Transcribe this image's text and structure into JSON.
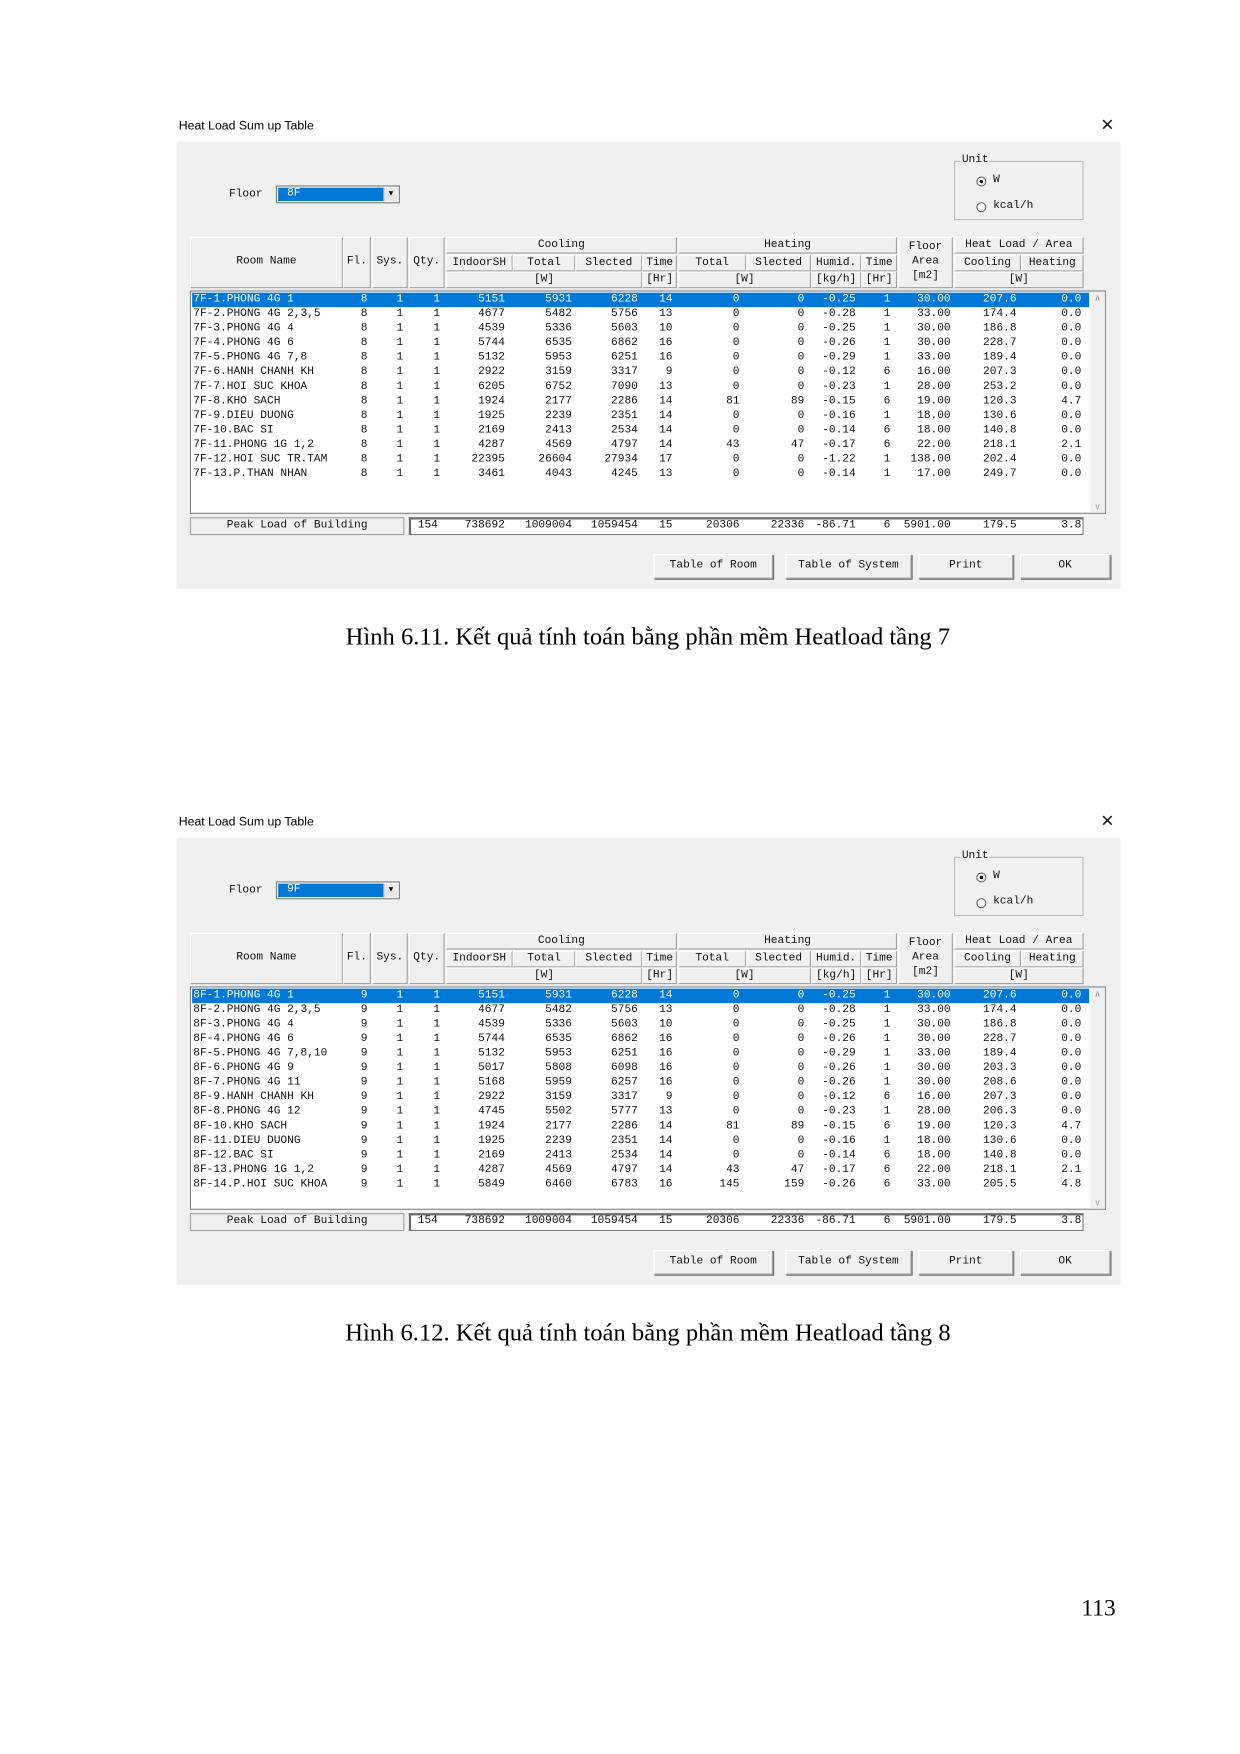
{
  "page_number": "113",
  "colors": {
    "selection": "#0078d7",
    "panel": "#f0f0f0"
  },
  "dialogs": [
    {
      "title": "Heat Load Sum up Table",
      "close_icon": "close-icon",
      "floor_label": "Floor",
      "floor_value": "8F",
      "unit": {
        "legend": "Unit",
        "options": [
          "W",
          "kcal/h"
        ],
        "selected": "W"
      },
      "headers": {
        "room_name": "Room Name",
        "fl": "Fl.",
        "sys": "Sys.",
        "qty": "Qty.",
        "cooling": "Cooling",
        "indoorsh": "IndoorSH",
        "c_total": "Total",
        "c_slected": "Slected",
        "c_time": "Time",
        "c_unit_w": "[W]",
        "c_unit_hr": "[Hr]",
        "heating": "Heating",
        "h_total": "Total",
        "h_slected": "Slected",
        "humid": "Humid.",
        "h_time": "Time",
        "h_unit_w": "[W]",
        "h_unit_kg": "[kg/h]",
        "h_unit_hr": "[Hr]",
        "floor_area": "Floor\nArea\n[m2]",
        "load_area": "Heat Load / Area",
        "la_cooling": "Cooling",
        "la_heating": "Heating",
        "la_unit": "[W]"
      },
      "selected_row": 0,
      "rows": [
        [
          "7F-1.PHONG 4G 1",
          "8",
          "1",
          "1",
          "5151",
          "5931",
          "6228",
          "14",
          "0",
          "0",
          "-0.25",
          "1",
          "30.00",
          "207.6",
          "0.0"
        ],
        [
          "7F-2.PHONG 4G 2,3,5",
          "8",
          "1",
          "1",
          "4677",
          "5482",
          "5756",
          "13",
          "0",
          "0",
          "-0.28",
          "1",
          "33.00",
          "174.4",
          "0.0"
        ],
        [
          "7F-3.PHONG 4G 4",
          "8",
          "1",
          "1",
          "4539",
          "5336",
          "5603",
          "10",
          "0",
          "0",
          "-0.25",
          "1",
          "30.00",
          "186.8",
          "0.0"
        ],
        [
          "7F-4.PHONG 4G 6",
          "8",
          "1",
          "1",
          "5744",
          "6535",
          "6862",
          "16",
          "0",
          "0",
          "-0.26",
          "1",
          "30.00",
          "228.7",
          "0.0"
        ],
        [
          "7F-5.PHONG 4G 7,8",
          "8",
          "1",
          "1",
          "5132",
          "5953",
          "6251",
          "16",
          "0",
          "0",
          "-0.29",
          "1",
          "33.00",
          "189.4",
          "0.0"
        ],
        [
          "7F-6.HANH CHANH KH",
          "8",
          "1",
          "1",
          "2922",
          "3159",
          "3317",
          "9",
          "0",
          "0",
          "-0.12",
          "6",
          "16.00",
          "207.3",
          "0.0"
        ],
        [
          "7F-7.HOI SUC KHOA",
          "8",
          "1",
          "1",
          "6205",
          "6752",
          "7090",
          "13",
          "0",
          "0",
          "-0.23",
          "1",
          "28.00",
          "253.2",
          "0.0"
        ],
        [
          "7F-8.KHO SACH",
          "8",
          "1",
          "1",
          "1924",
          "2177",
          "2286",
          "14",
          "81",
          "89",
          "-0.15",
          "6",
          "19.00",
          "120.3",
          "4.7"
        ],
        [
          "7F-9.DIEU DUONG",
          "8",
          "1",
          "1",
          "1925",
          "2239",
          "2351",
          "14",
          "0",
          "0",
          "-0.16",
          "1",
          "18.00",
          "130.6",
          "0.0"
        ],
        [
          "7F-10.BAC SI",
          "8",
          "1",
          "1",
          "2169",
          "2413",
          "2534",
          "14",
          "0",
          "0",
          "-0.14",
          "6",
          "18.00",
          "140.8",
          "0.0"
        ],
        [
          "7F-11.PHONG 1G 1,2",
          "8",
          "1",
          "1",
          "4287",
          "4569",
          "4797",
          "14",
          "43",
          "47",
          "-0.17",
          "6",
          "22.00",
          "218.1",
          "2.1"
        ],
        [
          "7F-12.HOI SUC TR.TAM",
          "8",
          "1",
          "1",
          "22395",
          "26604",
          "27934",
          "17",
          "0",
          "0",
          "-1.22",
          "1",
          "138.00",
          "202.4",
          "0.0"
        ],
        [
          "7F-13.P.THAN NHAN",
          "8",
          "1",
          "1",
          "3461",
          "4043",
          "4245",
          "13",
          "0",
          "0",
          "-0.14",
          "1",
          "17.00",
          "249.7",
          "0.0"
        ]
      ],
      "peak_label": "Peak Load of Building",
      "peak_values": [
        "154",
        "738692",
        "1009004",
        "1059454",
        "15",
        "20306",
        "22336",
        "-86.71",
        "6",
        "5901.00",
        "179.5",
        "3.8"
      ],
      "buttons": [
        "Table of Room",
        "Table of System",
        "Print",
        "OK"
      ],
      "caption": "Hình 6.11. Kết quả tính toán bằng phần mềm Heatload tầng 7"
    },
    {
      "title": "Heat Load Sum up Table",
      "close_icon": "close-icon",
      "floor_label": "Floor",
      "floor_value": "9F",
      "unit": {
        "legend": "Unit",
        "options": [
          "W",
          "kcal/h"
        ],
        "selected": "W"
      },
      "headers": {
        "room_name": "Room Name",
        "fl": "Fl.",
        "sys": "Sys.",
        "qty": "Qty.",
        "cooling": "Cooling",
        "indoorsh": "IndoorSH",
        "c_total": "Total",
        "c_slected": "Slected",
        "c_time": "Time",
        "c_unit_w": "[W]",
        "c_unit_hr": "[Hr]",
        "heating": "Heating",
        "h_total": "Total",
        "h_slected": "Slected",
        "humid": "Humid.",
        "h_time": "Time",
        "h_unit_w": "[W]",
        "h_unit_kg": "[kg/h]",
        "h_unit_hr": "[Hr]",
        "floor_area": "Floor\nArea\n[m2]",
        "load_area": "Heat Load / Area",
        "la_cooling": "Cooling",
        "la_heating": "Heating",
        "la_unit": "[W]"
      },
      "selected_row": 0,
      "rows": [
        [
          "8F-1.PHONG 4G 1",
          "9",
          "1",
          "1",
          "5151",
          "5931",
          "6228",
          "14",
          "0",
          "0",
          "-0.25",
          "1",
          "30.00",
          "207.6",
          "0.0"
        ],
        [
          "8F-2.PHONG 4G 2,3,5",
          "9",
          "1",
          "1",
          "4677",
          "5482",
          "5756",
          "13",
          "0",
          "0",
          "-0.28",
          "1",
          "33.00",
          "174.4",
          "0.0"
        ],
        [
          "8F-3.PHONG 4G 4",
          "9",
          "1",
          "1",
          "4539",
          "5336",
          "5603",
          "10",
          "0",
          "0",
          "-0.25",
          "1",
          "30.00",
          "186.8",
          "0.0"
        ],
        [
          "8F-4.PHONG 4G 6",
          "9",
          "1",
          "1",
          "5744",
          "6535",
          "6862",
          "16",
          "0",
          "0",
          "-0.26",
          "1",
          "30.00",
          "228.7",
          "0.0"
        ],
        [
          "8F-5.PHONG 4G 7,8,10",
          "9",
          "1",
          "1",
          "5132",
          "5953",
          "6251",
          "16",
          "0",
          "0",
          "-0.29",
          "1",
          "33.00",
          "189.4",
          "0.0"
        ],
        [
          "8F-6.PHONG 4G 9",
          "9",
          "1",
          "1",
          "5017",
          "5808",
          "6098",
          "16",
          "0",
          "0",
          "-0.26",
          "1",
          "30.00",
          "203.3",
          "0.0"
        ],
        [
          "8F-7.PHONG 4G 11",
          "9",
          "1",
          "1",
          "5168",
          "5959",
          "6257",
          "16",
          "0",
          "0",
          "-0.26",
          "1",
          "30.00",
          "208.6",
          "0.0"
        ],
        [
          "8F-9.HANH CHANH KH",
          "9",
          "1",
          "1",
          "2922",
          "3159",
          "3317",
          "9",
          "0",
          "0",
          "-0.12",
          "6",
          "16.00",
          "207.3",
          "0.0"
        ],
        [
          "8F-8.PHONG 4G 12",
          "9",
          "1",
          "1",
          "4745",
          "5502",
          "5777",
          "13",
          "0",
          "0",
          "-0.23",
          "1",
          "28.00",
          "206.3",
          "0.0"
        ],
        [
          "8F-10.KHO SACH",
          "9",
          "1",
          "1",
          "1924",
          "2177",
          "2286",
          "14",
          "81",
          "89",
          "-0.15",
          "6",
          "19.00",
          "120.3",
          "4.7"
        ],
        [
          "8F-11.DIEU DUONG",
          "9",
          "1",
          "1",
          "1925",
          "2239",
          "2351",
          "14",
          "0",
          "0",
          "-0.16",
          "1",
          "18.00",
          "130.6",
          "0.0"
        ],
        [
          "8F-12.BAC SI",
          "9",
          "1",
          "1",
          "2169",
          "2413",
          "2534",
          "14",
          "0",
          "0",
          "-0.14",
          "6",
          "18.00",
          "140.8",
          "0.0"
        ],
        [
          "8F-13.PHONG 1G 1,2",
          "9",
          "1",
          "1",
          "4287",
          "4569",
          "4797",
          "14",
          "43",
          "47",
          "-0.17",
          "6",
          "22.00",
          "218.1",
          "2.1"
        ],
        [
          "8F-14.P.HOI SUC KHOA",
          "9",
          "1",
          "1",
          "5849",
          "6460",
          "6783",
          "16",
          "145",
          "159",
          "-0.26",
          "6",
          "33.00",
          "205.5",
          "4.8"
        ]
      ],
      "peak_label": "Peak Load of Building",
      "peak_values": [
        "154",
        "738692",
        "1009004",
        "1059454",
        "15",
        "20306",
        "22336",
        "-86.71",
        "6",
        "5901.00",
        "179.5",
        "3.8"
      ],
      "buttons": [
        "Table of Room",
        "Table of System",
        "Print",
        "OK"
      ],
      "caption": "Hình 6.12. Kết quả tính toán bằng phần mềm Heatload tầng 8"
    }
  ]
}
